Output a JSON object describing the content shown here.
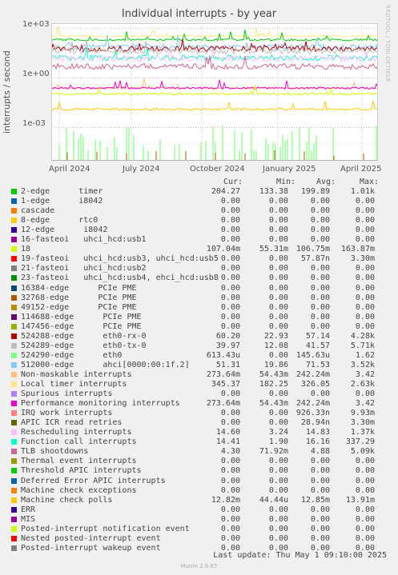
{
  "title": "Individual interrupts - by year",
  "side_label": "RRDTOOL / TOBI OETIKER",
  "ylabel": "interrupts / second",
  "yticks": [
    "1e+03",
    "1e+00",
    "1e-03"
  ],
  "xticks": [
    "April 2024",
    "July 2024",
    "October 2024",
    "January 2025",
    "April 2025"
  ],
  "columns": [
    "Cur:",
    "Min:",
    "Avg:",
    "Max:"
  ],
  "legend": [
    {
      "name": "2-edge      timer",
      "color": "#00cc00",
      "cur": "204.27",
      "min": "133.38",
      "avg": "199.89",
      "max": "1.01k"
    },
    {
      "name": "1-edge      i8042",
      "color": "#0066b3",
      "cur": "0.00",
      "min": "0.00",
      "avg": "0.00",
      "max": "0.00"
    },
    {
      "name": "cascade",
      "color": "#ff8000",
      "cur": "0.00",
      "min": "0.00",
      "avg": "0.00",
      "max": "0.00"
    },
    {
      "name": "8-edge      rtc0",
      "color": "#ffcc00",
      "cur": "0.00",
      "min": "0.00",
      "avg": "0.00",
      "max": "0.00"
    },
    {
      "name": "12-edge      i8042",
      "color": "#330099",
      "cur": "0.00",
      "min": "0.00",
      "avg": "0.00",
      "max": "0.00"
    },
    {
      "name": "16-fasteoi   uhci_hcd:usb1",
      "color": "#990099",
      "cur": "0.00",
      "min": "0.00",
      "avg": "0.00",
      "max": "0.00"
    },
    {
      "name": "18",
      "color": "#ccff00",
      "cur": "107.04m",
      "min": "55.31m",
      "avg": "106.75m",
      "max": "163.87m"
    },
    {
      "name": "19-fasteoi   uhci_hcd:usb3, uhci_hcd:usb5",
      "color": "#ff0000",
      "cur": "0.00",
      "min": "0.00",
      "avg": "57.87n",
      "max": "3.30m"
    },
    {
      "name": "21-fasteoi   uhci_hcd:usb2",
      "color": "#808080",
      "cur": "0.00",
      "min": "0.00",
      "avg": "0.00",
      "max": "0.00"
    },
    {
      "name": "23-fasteoi   uhci_hcd:usb4, ehci_hcd:usb8",
      "color": "#008f00",
      "cur": "0.00",
      "min": "0.00",
      "avg": "0.00",
      "max": "0.00"
    },
    {
      "name": "16384-edge      PCIe PME",
      "color": "#00487d",
      "cur": "0.00",
      "min": "0.00",
      "avg": "0.00",
      "max": "0.00"
    },
    {
      "name": "32768-edge      PCIe PME",
      "color": "#b35a00",
      "cur": "0.00",
      "min": "0.00",
      "avg": "0.00",
      "max": "0.00"
    },
    {
      "name": "49152-edge      PCIe PME",
      "color": "#b38f00",
      "cur": "0.00",
      "min": "0.00",
      "avg": "0.00",
      "max": "0.00"
    },
    {
      "name": "114688-edge      PCIe PME",
      "color": "#6b006b",
      "cur": "0.00",
      "min": "0.00",
      "avg": "0.00",
      "max": "0.00"
    },
    {
      "name": "147456-edge      PCIe PME",
      "color": "#8fb300",
      "cur": "0.00",
      "min": "0.00",
      "avg": "0.00",
      "max": "0.00"
    },
    {
      "name": "524288-edge      eth0-rx-0",
      "color": "#b30000",
      "cur": "60.20",
      "min": "22.93",
      "avg": "57.14",
      "max": "4.28k"
    },
    {
      "name": "524289-edge      eth0-tx-0",
      "color": "#bebebe",
      "cur": "39.97",
      "min": "12.08",
      "avg": "41.57",
      "max": "5.71k"
    },
    {
      "name": "524290-edge      eth0",
      "color": "#80ff80",
      "cur": "613.43u",
      "min": "0.00",
      "avg": "145.63u",
      "max": "1.62"
    },
    {
      "name": "512000-edge      ahci[0000:00:1f.2]",
      "color": "#80c9ff",
      "cur": "51.31",
      "min": "19.86",
      "avg": "71.53",
      "max": "3.52k"
    },
    {
      "name": "Non-maskable interrupts",
      "color": "#ffc080",
      "cur": "273.64m",
      "min": "54.43m",
      "avg": "242.24m",
      "max": "3.42"
    },
    {
      "name": "Local timer interrupts",
      "color": "#ffe680",
      "cur": "345.37",
      "min": "182.25",
      "avg": "326.05",
      "max": "2.63k"
    },
    {
      "name": "Spurious interrupts",
      "color": "#aa80ff",
      "cur": "0.00",
      "min": "0.00",
      "avg": "0.00",
      "max": "0.00"
    },
    {
      "name": "Performance monitoring interrupts",
      "color": "#ee00cc",
      "cur": "273.64m",
      "min": "54.43m",
      "avg": "242.24m",
      "max": "3.42"
    },
    {
      "name": "IRQ work interrupts",
      "color": "#ff8080",
      "cur": "0.00",
      "min": "0.00",
      "avg": "926.33n",
      "max": "9.93m"
    },
    {
      "name": "APIC ICR read retries",
      "color": "#666600",
      "cur": "0.00",
      "min": "0.00",
      "avg": "28.94n",
      "max": "3.30m"
    },
    {
      "name": "Rescheduling interrupts",
      "color": "#ffbfff",
      "cur": "14.60",
      "min": "3.24",
      "avg": "14.83",
      "max": "1.37k"
    },
    {
      "name": "Function call interrupts",
      "color": "#00ffcc",
      "cur": "14.41",
      "min": "1.90",
      "avg": "16.16",
      "max": "337.29"
    },
    {
      "name": "TLB shootdowns",
      "color": "#cc6699",
      "cur": "4.30",
      "min": "71.92m",
      "avg": "4.88",
      "max": "5.09k"
    },
    {
      "name": "Thermal event interrupts",
      "color": "#999900",
      "cur": "0.00",
      "min": "0.00",
      "avg": "0.00",
      "max": "0.00"
    },
    {
      "name": "Threshold APIC interrupts",
      "color": "#00cc00",
      "cur": "0.00",
      "min": "0.00",
      "avg": "0.00",
      "max": "0.00"
    },
    {
      "name": "Deferred Error APIC interrupts",
      "color": "#0066b3",
      "cur": "0.00",
      "min": "0.00",
      "avg": "0.00",
      "max": "0.00"
    },
    {
      "name": "Machine check exceptions",
      "color": "#ff8000",
      "cur": "0.00",
      "min": "0.00",
      "avg": "0.00",
      "max": "0.00"
    },
    {
      "name": "Machine check polls",
      "color": "#ffcc00",
      "cur": "12.82m",
      "min": "44.44u",
      "avg": "12.85m",
      "max": "13.91m"
    },
    {
      "name": "ERR",
      "color": "#330099",
      "cur": "0.00",
      "min": "0.00",
      "avg": "0.00",
      "max": "0.00"
    },
    {
      "name": "MIS",
      "color": "#990099",
      "cur": "0.00",
      "min": "0.00",
      "avg": "0.00",
      "max": "0.00"
    },
    {
      "name": "Posted-interrupt notification event",
      "color": "#ccff00",
      "cur": "0.00",
      "min": "0.00",
      "avg": "0.00",
      "max": "0.00"
    },
    {
      "name": "Nested posted-interrupt event",
      "color": "#ff0000",
      "cur": "0.00",
      "min": "0.00",
      "avg": "0.00",
      "max": "0.00"
    },
    {
      "name": "Posted-interrupt wakeup event",
      "color": "#808080",
      "cur": "0.00",
      "min": "0.00",
      "avg": "0.00",
      "max": "0.00"
    }
  ],
  "footer": "Last update: Thu May  1 09:10:00 2025",
  "munin": "Munin 2.0.67",
  "chart_data": {
    "type": "line",
    "title": "Individual interrupts - by year",
    "ylabel": "interrupts / second",
    "yscale": "log",
    "ylim": [
      1e-05,
      2000
    ],
    "x_range": [
      "2024-03-28",
      "2025-05-01"
    ],
    "x_ticks": [
      "April 2024",
      "July 2024",
      "October 2024",
      "January 2025",
      "April 2025"
    ],
    "grid": true,
    "series": [
      {
        "name": "Local timer interrupts",
        "color": "#ffe680",
        "level": 326.05
      },
      {
        "name": "2-edge      timer",
        "color": "#00cc00",
        "level": 199.89
      },
      {
        "name": "512000-edge      ahci[0000:00:1f.2]",
        "color": "#80c9ff",
        "level": 71.53
      },
      {
        "name": "524288-edge      eth0-rx-0",
        "color": "#b30000",
        "level": 57.14
      },
      {
        "name": "524289-edge      eth0-tx-0",
        "color": "#bebebe",
        "level": 41.57
      },
      {
        "name": "Function call interrupts",
        "color": "#00ffcc",
        "level": 16.16
      },
      {
        "name": "Rescheduling interrupts",
        "color": "#ffbfff",
        "level": 14.83
      },
      {
        "name": "TLB shootdowns",
        "color": "#cc6699",
        "level": 4.88
      },
      {
        "name": "Non-maskable interrupts",
        "color": "#ffc080",
        "level": 0.24224
      },
      {
        "name": "Performance monitoring interrupts",
        "color": "#ee00cc",
        "level": 0.24224
      },
      {
        "name": "18",
        "color": "#ccff00",
        "level": 0.10675
      },
      {
        "name": "Machine check polls",
        "color": "#ffcc00",
        "level": 0.01285
      },
      {
        "name": "524290-edge      eth0",
        "color": "#80ff80",
        "level": 0.00014563
      }
    ]
  }
}
